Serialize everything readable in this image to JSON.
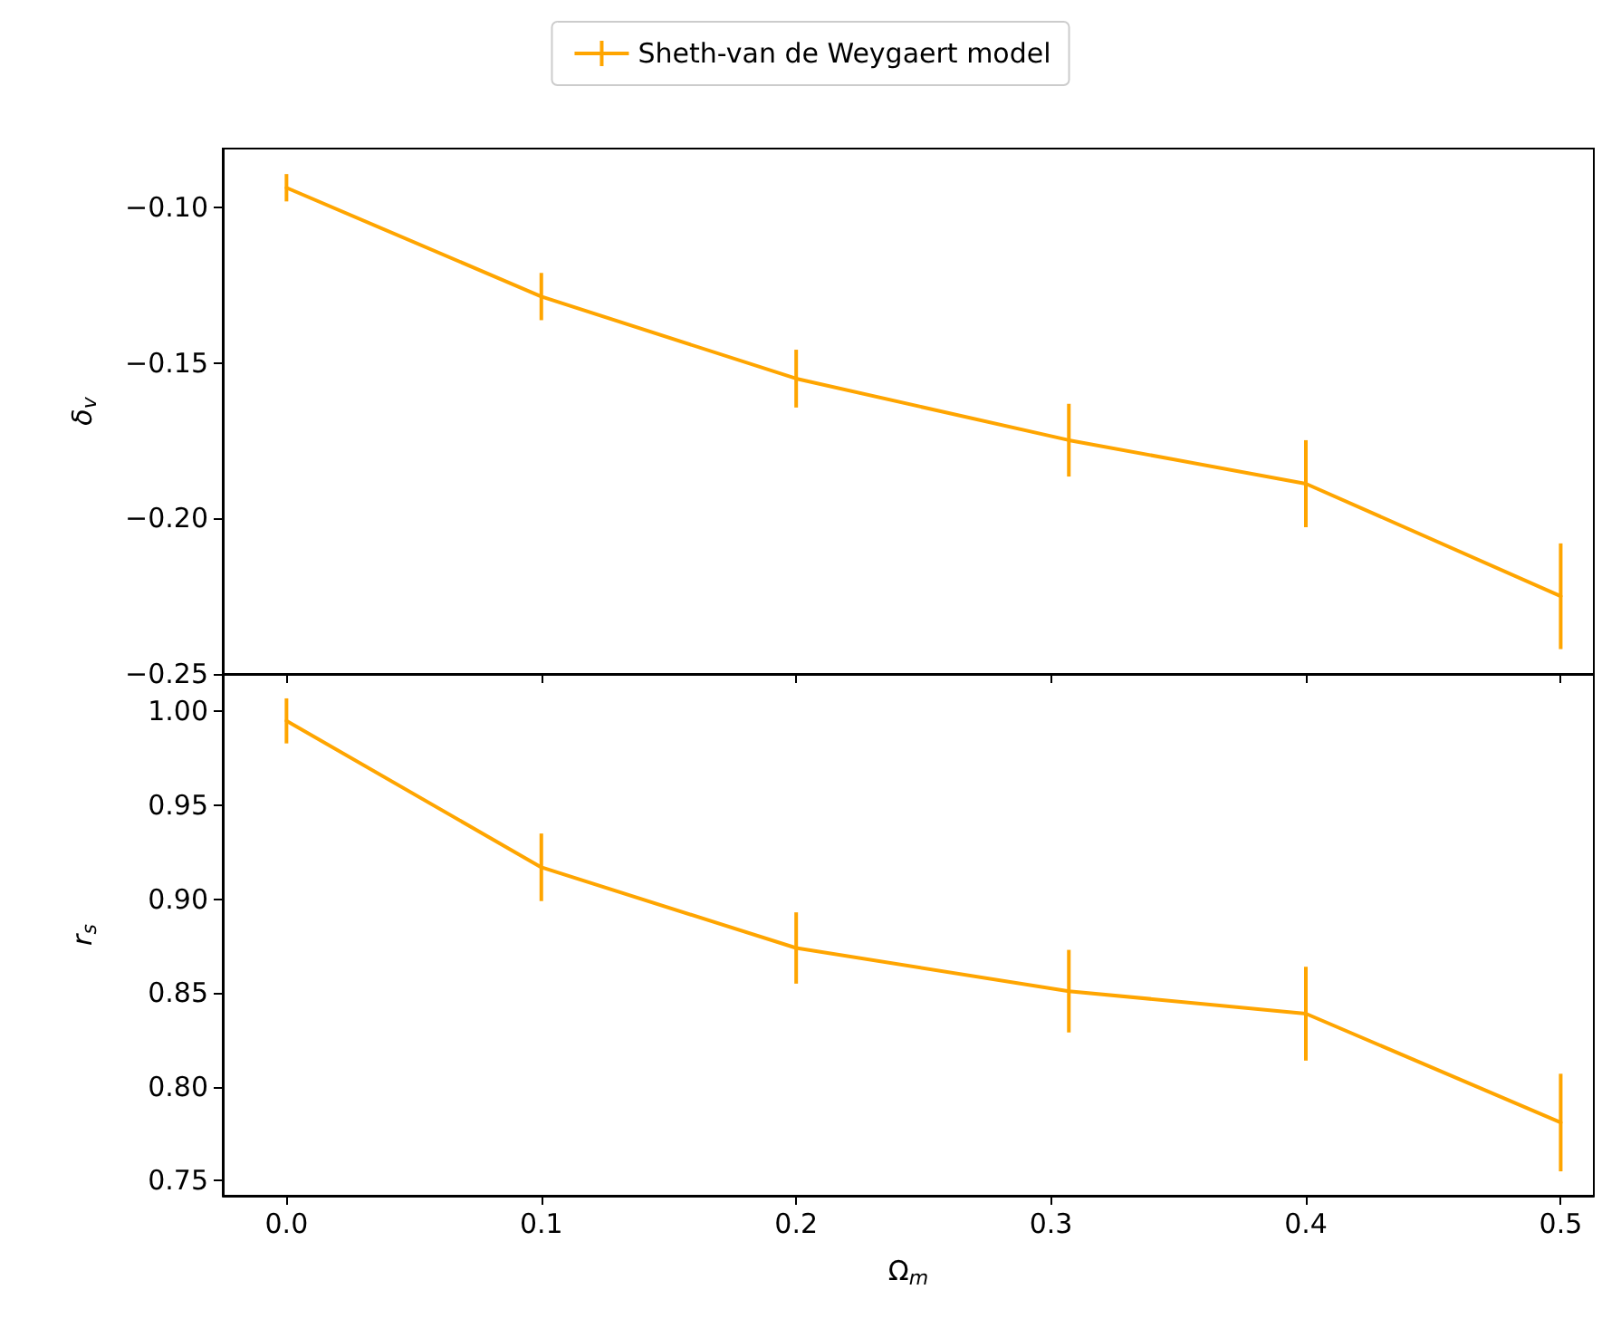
{
  "chart_data": [
    {
      "type": "line",
      "ylabel": "δ$_{v}$",
      "legend": "top",
      "marker": "none",
      "line_style": "solid",
      "grid": false,
      "tick_labels": "y",
      "x": [
        0.0,
        0.1,
        0.2,
        0.307,
        0.4,
        0.5
      ],
      "series": [
        {
          "name": "Sheth-van de Weygaert model",
          "color": "#ffa500",
          "values": [
            -0.0936,
            -0.1286,
            -0.155,
            -0.1748,
            -0.1888,
            -0.225
          ],
          "errors": [
            0.0044,
            0.0076,
            0.0093,
            0.0117,
            0.014,
            0.017
          ]
        }
      ],
      "xlim": [
        -0.025,
        0.513
      ],
      "xticks": [
        {
          "value": 0,
          "label": null
        },
        {
          "value": 0.1,
          "label": null
        },
        {
          "value": 0.2,
          "label": null
        },
        {
          "value": 0.3,
          "label": null
        },
        {
          "value": 0.4,
          "label": null
        },
        {
          "value": 0.5,
          "label": null
        }
      ],
      "ylim": [
        -0.25,
        -0.081
      ],
      "yticks": [
        {
          "value": -0.25,
          "label": "−0.25"
        },
        {
          "value": -0.2,
          "label": "−0.20"
        },
        {
          "value": -0.15,
          "label": "−0.15"
        },
        {
          "value": -0.1,
          "label": "−0.10"
        }
      ]
    },
    {
      "type": "line",
      "xlabel": "Ω$_{m}$",
      "ylabel": "r$_{s}$",
      "marker": "none",
      "line_style": "solid",
      "grid": false,
      "x": [
        0.0,
        0.1,
        0.2,
        0.307,
        0.4,
        0.5
      ],
      "series": [
        {
          "color": "#ffa500",
          "values": [
            0.995,
            0.917,
            0.874,
            0.851,
            0.839,
            0.781
          ],
          "errors": [
            0.012,
            0.018,
            0.019,
            0.022,
            0.025,
            0.026
          ]
        }
      ],
      "xlim": [
        -0.025,
        0.513
      ],
      "xticks": [
        {
          "value": 0,
          "label": "0.0"
        },
        {
          "value": 0.1,
          "label": "0.1"
        },
        {
          "value": 0.2,
          "label": "0.2"
        },
        {
          "value": 0.3,
          "label": "0.3"
        },
        {
          "value": 0.4,
          "label": "0.4"
        },
        {
          "value": 0.5,
          "label": "0.5"
        }
      ],
      "ylim": [
        0.742,
        1.02
      ],
      "yticks": [
        {
          "value": 0.75,
          "label": "0.75"
        },
        {
          "value": 0.8,
          "label": "0.80"
        },
        {
          "value": 0.85,
          "label": "0.85"
        },
        {
          "value": 0.9,
          "label": "0.90"
        },
        {
          "value": 0.95,
          "label": "0.95"
        },
        {
          "value": 1.0,
          "label": "1.00"
        }
      ]
    }
  ]
}
